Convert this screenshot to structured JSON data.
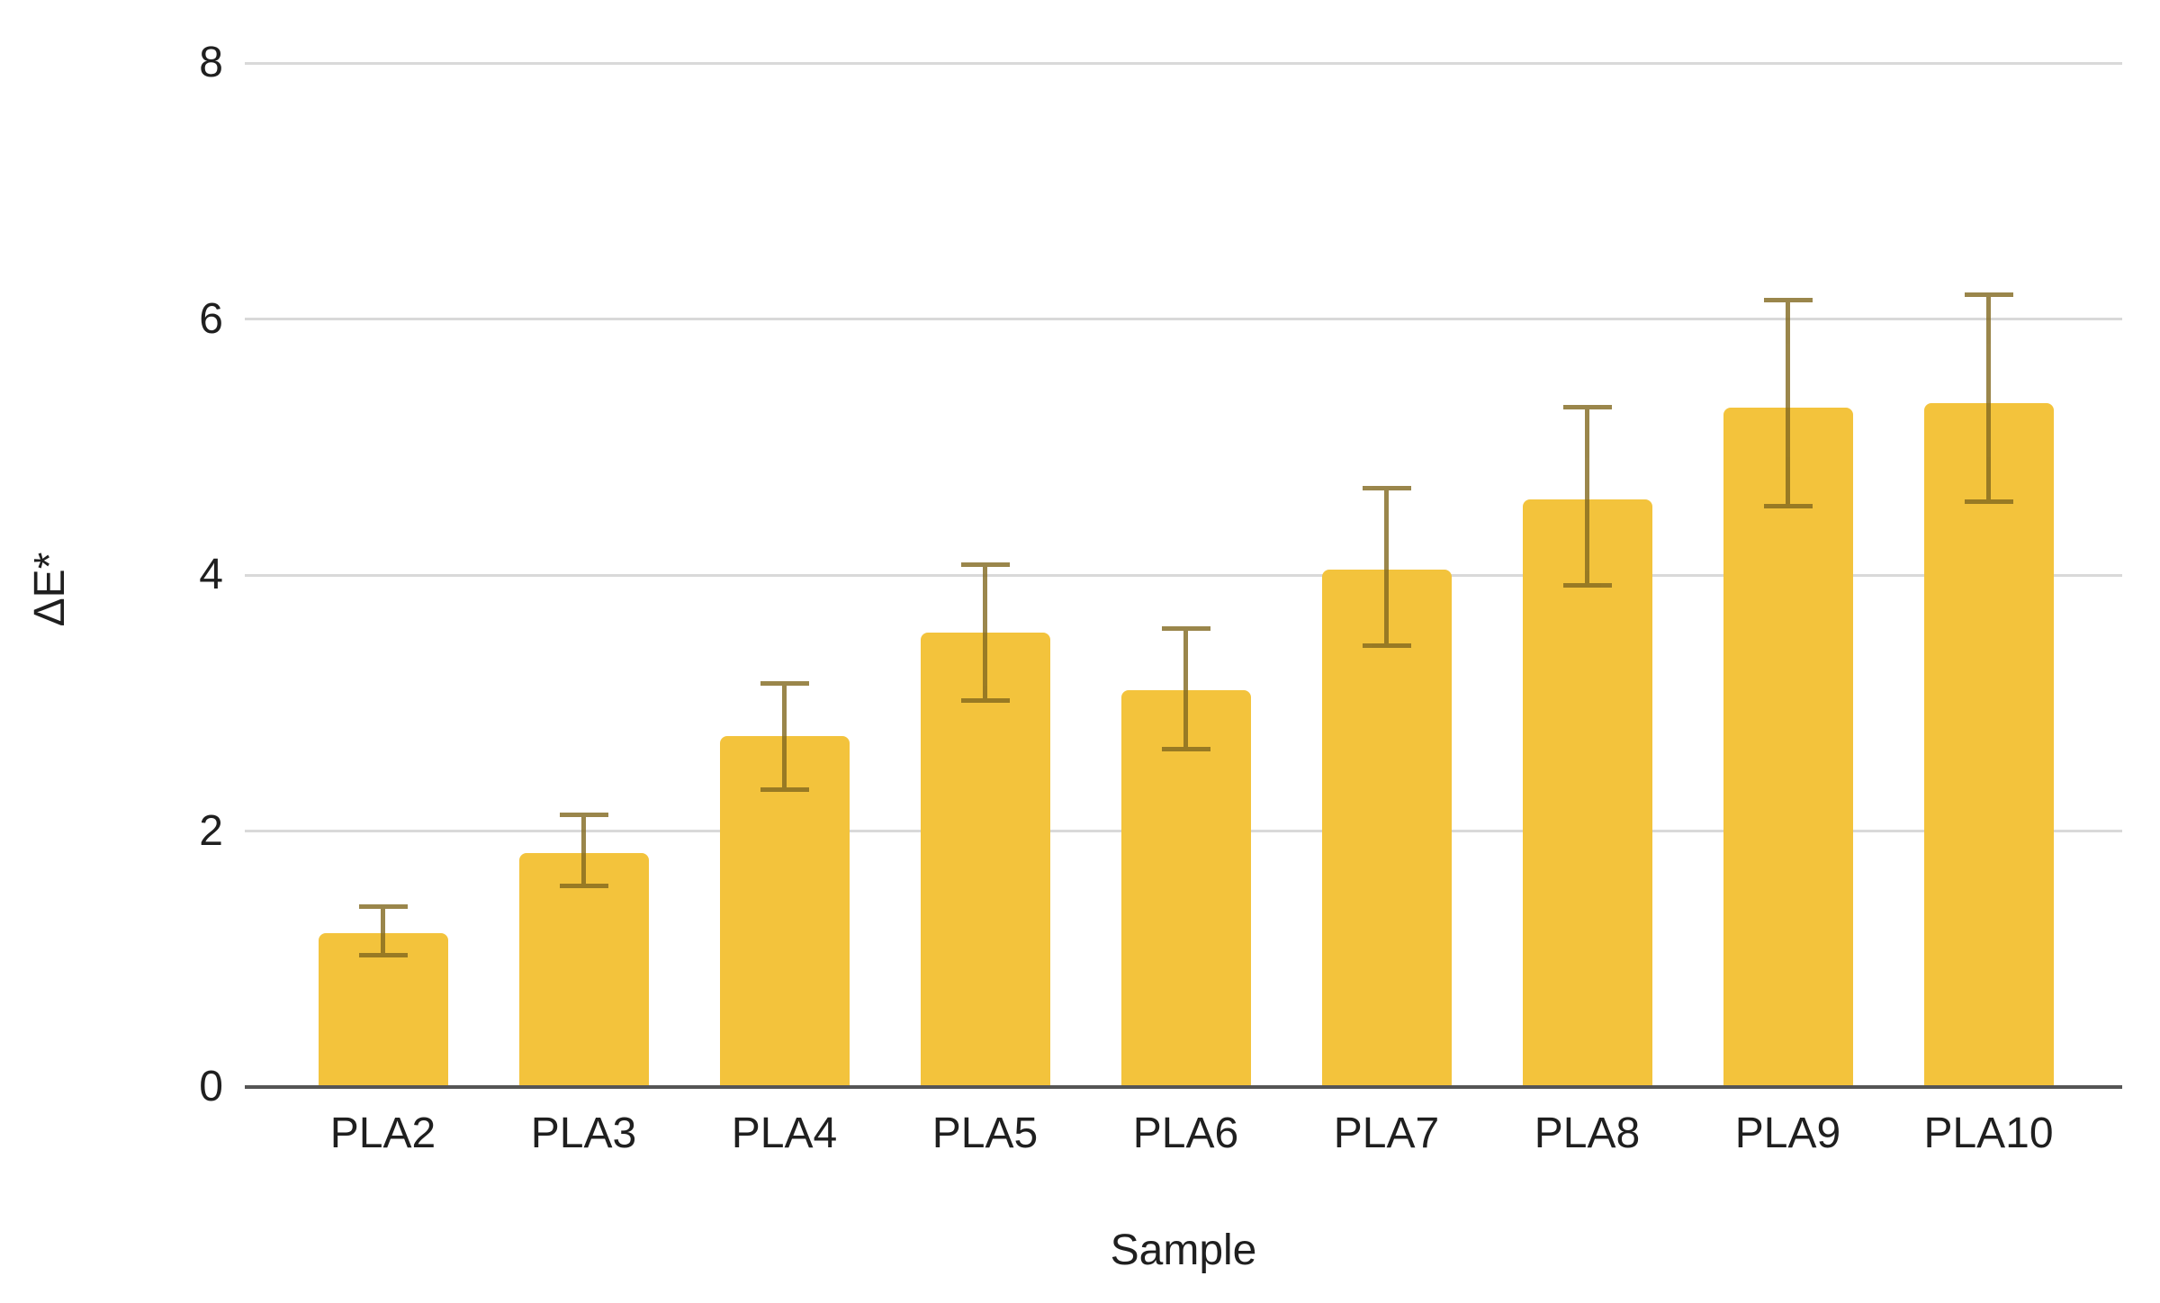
{
  "chart_data": {
    "type": "bar",
    "title": "",
    "xlabel": "Sample",
    "ylabel": "ΔE*",
    "categories": [
      "PLA2",
      "PLA3",
      "PLA4",
      "PLA5",
      "PLA6",
      "PLA7",
      "PLA8",
      "PLA9",
      "PLA10"
    ],
    "values": [
      1.2,
      1.83,
      2.74,
      3.55,
      3.1,
      4.04,
      4.59,
      5.31,
      5.34
    ],
    "error_up": [
      0.21,
      0.3,
      0.41,
      0.53,
      0.48,
      0.64,
      0.72,
      0.84,
      0.85
    ],
    "error_down": [
      0.17,
      0.26,
      0.42,
      0.53,
      0.46,
      0.59,
      0.67,
      0.77,
      0.77
    ],
    "yticks": [
      0,
      2,
      4,
      6,
      8
    ],
    "ylim": [
      0,
      8
    ],
    "grid": "horizontal",
    "legend": "none",
    "colors": {
      "bar": "#F3C33C",
      "error_bar": "#82691F",
      "gridline": "#D9D9D9",
      "axis_line": "#555555",
      "text": "#1F1F1F",
      "background": "#FFFFFF"
    }
  }
}
